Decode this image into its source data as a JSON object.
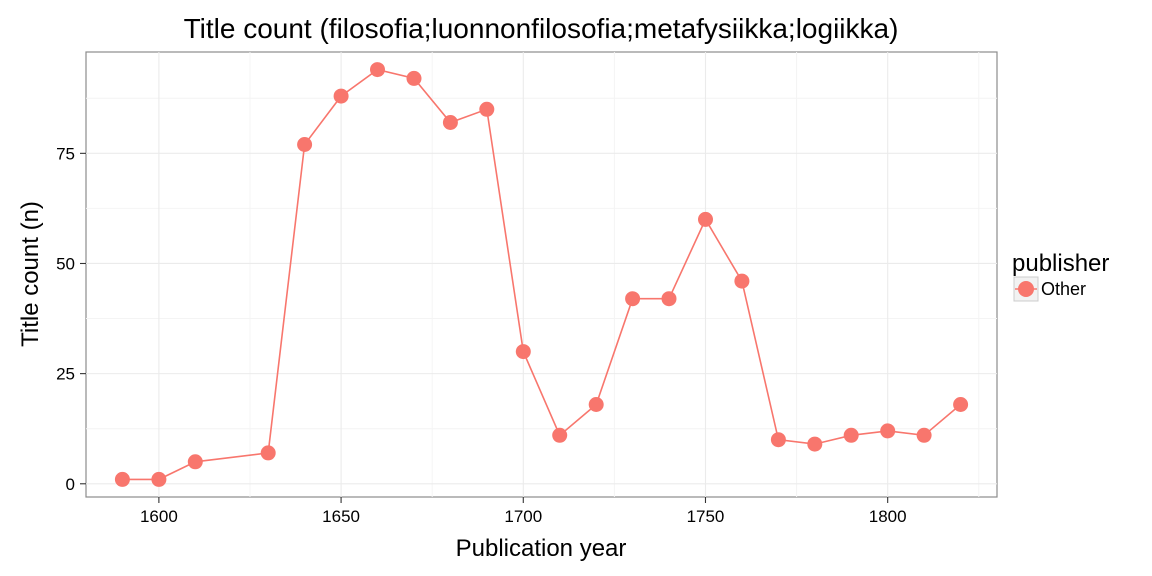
{
  "chart_data": {
    "type": "line",
    "title": "Title count (filosofia;luonnonfilosofia;metafysiikka;logiikka)",
    "xlabel": "Publication year",
    "ylabel": "Title count (n)",
    "xlim": [
      1580,
      1830
    ],
    "ylim": [
      -3,
      98
    ],
    "xticks": [
      1600,
      1650,
      1700,
      1750,
      1800
    ],
    "yticks": [
      0,
      25,
      50,
      75
    ],
    "grid": true,
    "legend": {
      "title": "publisher",
      "placement": "right"
    },
    "series": [
      {
        "name": "Other",
        "color": "#F8766D",
        "x": [
          1590,
          1600,
          1610,
          1630,
          1640,
          1650,
          1660,
          1670,
          1680,
          1690,
          1700,
          1710,
          1720,
          1730,
          1740,
          1750,
          1760,
          1770,
          1780,
          1790,
          1800,
          1810,
          1820
        ],
        "y": [
          1,
          1,
          5,
          7,
          77,
          88,
          94,
          92,
          82,
          85,
          30,
          11,
          18,
          42,
          42,
          60,
          46,
          10,
          9,
          11,
          12,
          11,
          18
        ]
      }
    ]
  }
}
